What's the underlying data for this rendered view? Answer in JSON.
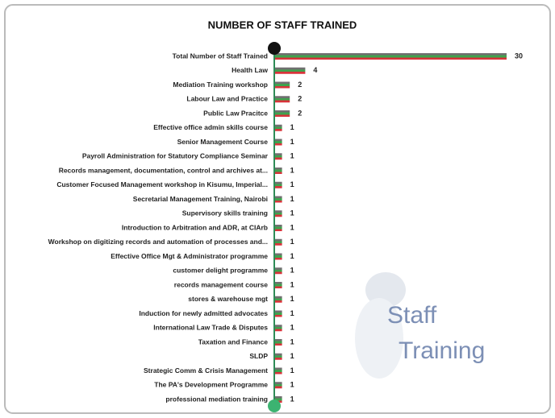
{
  "chart_data": {
    "type": "hbar",
    "title": "NUMBER OF STAFF TRAINED",
    "categories": [
      "Total Number of Staff Trained",
      "Health Law",
      "Mediation Training workshop",
      "Labour Law and Practice",
      "Public Law Pracitce",
      "Effective office admin skills course",
      "Senior Management Course",
      "Payroll Administration for Statutory Compliance Seminar",
      "Records management, documentation, control and archives at...",
      "Customer Focused Management workshop in Kisumu, Imperial...",
      "Secretarial Management Training, Nairobi",
      "Supervisory skills training",
      "Introduction to Arbitration and ADR, at CIArb",
      "Workshop on digitizing records and automation of processes and...",
      "Effective Office Mgt & Administrator programme",
      "customer delight programme",
      "records management course",
      "stores & warehouse mgt",
      "Induction for newly admitted advocates",
      "International Law Trade & Disputes",
      "Taxation and Finance",
      "SLDP",
      "Strategic Comm & Crisis Management",
      "The PA's Development Programme",
      "professional mediation training"
    ],
    "values": [
      30,
      4,
      2,
      2,
      2,
      1,
      1,
      1,
      1,
      1,
      1,
      1,
      1,
      1,
      1,
      1,
      1,
      1,
      1,
      1,
      1,
      1,
      1,
      1,
      1
    ],
    "bar_colors": [
      "#707070",
      "#3fa34d",
      "#d8333a"
    ],
    "xlim": [
      0,
      30
    ],
    "watermark": [
      "Staff",
      "Training"
    ]
  }
}
